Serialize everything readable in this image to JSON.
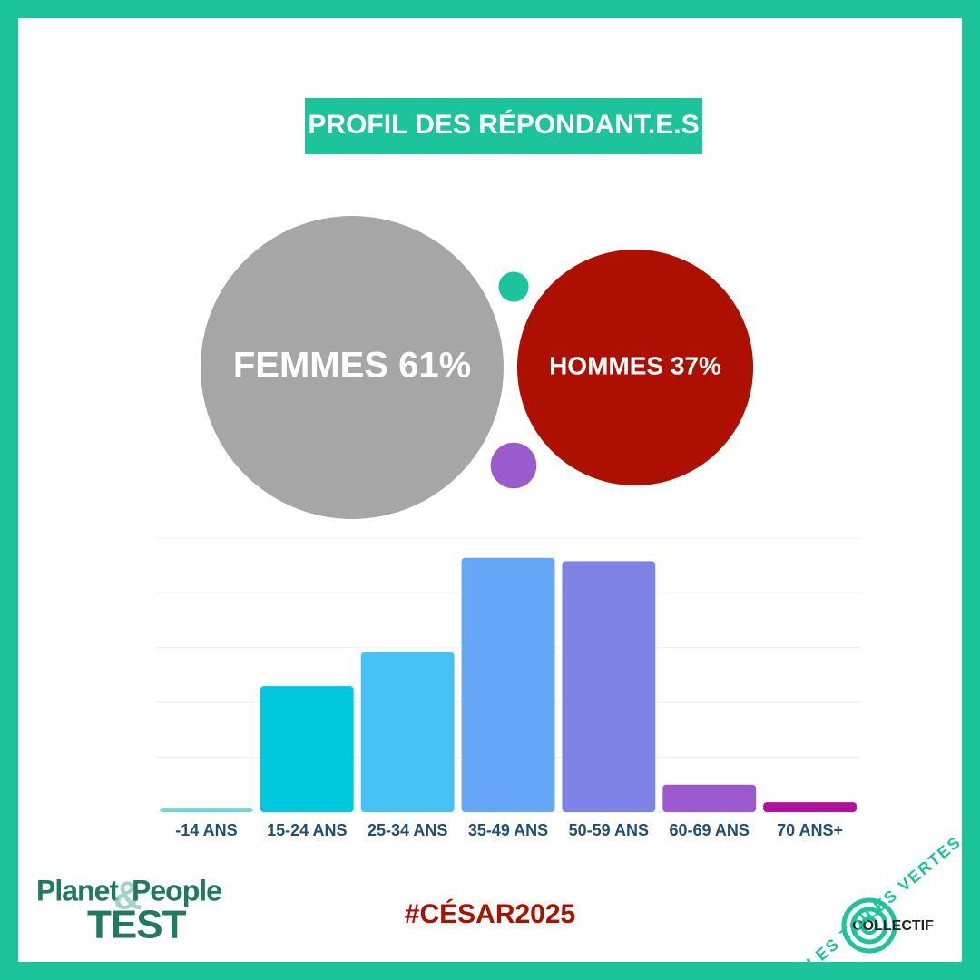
{
  "title": "PROFIL DES RÉPONDANT.E.S",
  "chart_data": [
    {
      "type": "bubble",
      "values": [
        61,
        37,
        0.6,
        1.4
      ],
      "value_labels": [
        "FEMMES 61%",
        "HOMMES 37%",
        null,
        null
      ],
      "colors": [
        "#a6a6a6",
        "#ad0f00",
        "#1bc49a",
        "#9a5ccc"
      ]
    },
    {
      "type": "bar",
      "categories": [
        "-14 ANS",
        "15-24 ANS",
        "25-34 ANS",
        "35-49 ANS",
        "50-59 ANS",
        "60-69 ANS",
        "70 ANS+"
      ],
      "values": [
        0.4,
        11.5,
        14.6,
        23.2,
        22.9,
        2.5,
        0.9
      ],
      "colors": [
        "#6fd8d0",
        "#00c9dd",
        "#47c2f5",
        "#66a7f7",
        "#8083e6",
        "#9b59cf",
        "#b0129b"
      ],
      "ylim": [
        0,
        25
      ],
      "yticks": [
        0,
        5,
        10,
        15,
        20,
        25
      ],
      "grid": true
    }
  ],
  "footer": {
    "logo_left": {
      "line1_a": "Planet",
      "amp": "&",
      "line1_b": "People",
      "line2": "TEST"
    },
    "hashtag": "#CÉSAR2025",
    "logo_right": {
      "arc": "LES TOILES VERTES",
      "word": "COLLECTIF"
    }
  }
}
